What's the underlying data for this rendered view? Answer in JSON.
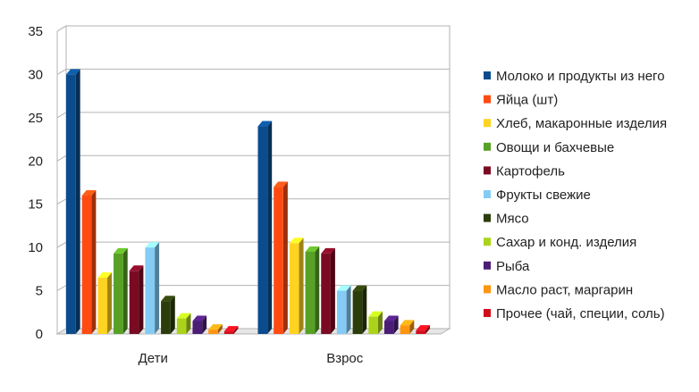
{
  "chart_data": {
    "type": "bar",
    "title": "",
    "xlabel": "",
    "ylabel": "",
    "categories": [
      "Дети",
      "Взрос"
    ],
    "ylim": [
      0,
      35
    ],
    "yticks": [
      0,
      5,
      10,
      15,
      20,
      25,
      30,
      35
    ],
    "grid": true,
    "legend_position": "right",
    "series": [
      {
        "name": "Молоко и продукты из него",
        "values": [
          30,
          24
        ],
        "color": "#0b4c8c"
      },
      {
        "name": "Яйца (шт)",
        "values": [
          16,
          17
        ],
        "color": "#ff4b12"
      },
      {
        "name": "Хлеб, макаронные изделия",
        "values": [
          6.5,
          10.5
        ],
        "color": "#ffd321"
      },
      {
        "name": "Овощи и бахчевые",
        "values": [
          9.3,
          9.5
        ],
        "color": "#57a125"
      },
      {
        "name": "Картофель",
        "values": [
          7.3,
          9.3
        ],
        "color": "#7a0a22"
      },
      {
        "name": "Фрукты свежие",
        "values": [
          10,
          5
        ],
        "color": "#84cbf5"
      },
      {
        "name": "Мясо",
        "values": [
          3.8,
          5
        ],
        "color": "#2c3d0c"
      },
      {
        "name": "Сахар и конд. изделия",
        "values": [
          1.8,
          2
        ],
        "color": "#acd31b"
      },
      {
        "name": "Рыба",
        "values": [
          1.5,
          1.5
        ],
        "color": "#4b1e76"
      },
      {
        "name": "Масло раст, маргарин",
        "values": [
          0.5,
          1
        ],
        "color": "#ff9511"
      },
      {
        "name": "Прочее (чай, специи, соль)",
        "values": [
          0.3,
          0.4
        ],
        "color": "#d20e1d"
      }
    ]
  }
}
